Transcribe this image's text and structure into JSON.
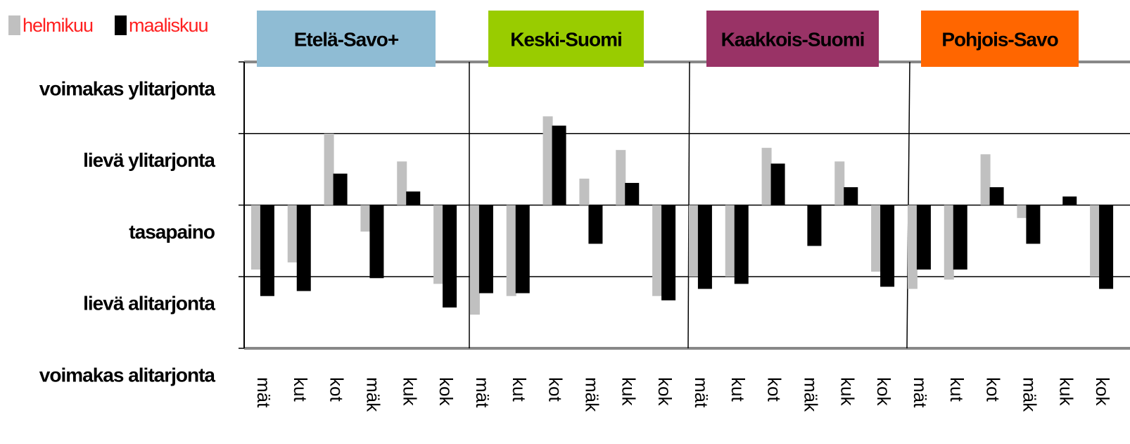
{
  "chart_data": {
    "type": "bar",
    "groups": [
      {
        "name": "Etelä-Savo+",
        "color": "#8fbcd4"
      },
      {
        "name": "Keski-Suomi",
        "color": "#99cc00"
      },
      {
        "name": "Kaakkois-Suomi",
        "color": "#993366"
      },
      {
        "name": "Pohjois-Savo",
        "color": "#ff6600"
      }
    ],
    "categories": [
      "mät",
      "kut",
      "kot",
      "mäk",
      "kuk",
      "kok",
      "mät",
      "kut",
      "kot",
      "mäk",
      "kuk",
      "kok",
      "mät",
      "kut",
      "kot",
      "mäk",
      "kuk",
      "kok",
      "mät",
      "kut",
      "kot",
      "mäk",
      "kuk",
      "kok"
    ],
    "series": [
      {
        "name": "helmikuu",
        "color": "#c0c0c0",
        "values": [
          -0.9,
          -0.8,
          1.0,
          -0.37,
          0.61,
          -1.1,
          -1.53,
          -1.27,
          1.24,
          0.37,
          0.77,
          -1.27,
          -1.0,
          -1.0,
          0.8,
          0,
          0.61,
          -0.93,
          -1.17,
          -1.04,
          0.71,
          -0.18,
          0,
          -1.0
        ]
      },
      {
        "name": "maaliskuu",
        "color": "#000000",
        "values": [
          -1.27,
          -1.2,
          0.44,
          -1.02,
          0.19,
          -1.43,
          -1.23,
          -1.23,
          1.11,
          -0.54,
          0.31,
          -1.33,
          -1.17,
          -1.1,
          0.58,
          -0.57,
          0.25,
          -1.14,
          -0.9,
          -0.9,
          0.25,
          -0.54,
          0.12,
          -1.17
        ]
      }
    ],
    "ylim": [
      -2,
      2
    ],
    "yticks": [
      {
        "value": 2,
        "label": "voimakas ylitarjonta"
      },
      {
        "value": 1,
        "label": "lievä ylitarjonta"
      },
      {
        "value": 0,
        "label": "tasapaino"
      },
      {
        "value": -1,
        "label": "lievä alitarjonta"
      },
      {
        "value": -2,
        "label": "voimakas alitarjonta"
      }
    ],
    "grid": true
  }
}
